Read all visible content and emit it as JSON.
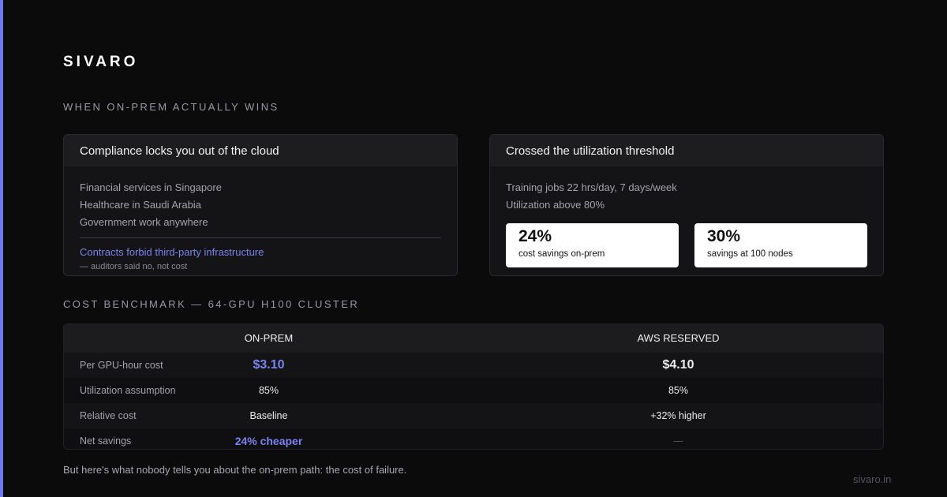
{
  "brand": "SIVARO",
  "section_1": {
    "title": "WHEN ON-PREM ACTUALLY WINS",
    "cards": [
      {
        "title": "Compliance locks you out of the cloud",
        "lines": [
          "Financial services in Singapore",
          "Healthcare in Saudi Arabia",
          "Government work anywhere"
        ],
        "highlight": "Contracts forbid third-party infrastructure",
        "note": "— auditors said no, not cost"
      },
      {
        "title": "Crossed the utilization threshold",
        "lines": [
          "Training jobs 22 hrs/day, 7 days/week",
          "Utilization above 80%"
        ],
        "stats": [
          {
            "value": "24%",
            "label": "cost savings on-prem"
          },
          {
            "value": "30%",
            "label": "savings at 100 nodes"
          }
        ]
      }
    ]
  },
  "section_2": {
    "title": "COST BENCHMARK — 64-GPU H100 CLUSTER",
    "table": {
      "header": [
        "ON-PREM",
        "AWS RESERVED"
      ],
      "rows": [
        [
          "Per GPU-hour cost",
          "$3.10",
          "$4.10"
        ],
        [
          "Utilization assumption",
          "85%",
          "85%"
        ],
        [
          "Relative cost",
          "Baseline",
          "+32% higher"
        ],
        [
          "Net savings",
          "24% cheaper",
          "—"
        ]
      ]
    }
  },
  "footer": {
    "text": "But here's what nobody tells you about the on-prem path: the cost of failure.",
    "url": "sivaro.in"
  }
}
